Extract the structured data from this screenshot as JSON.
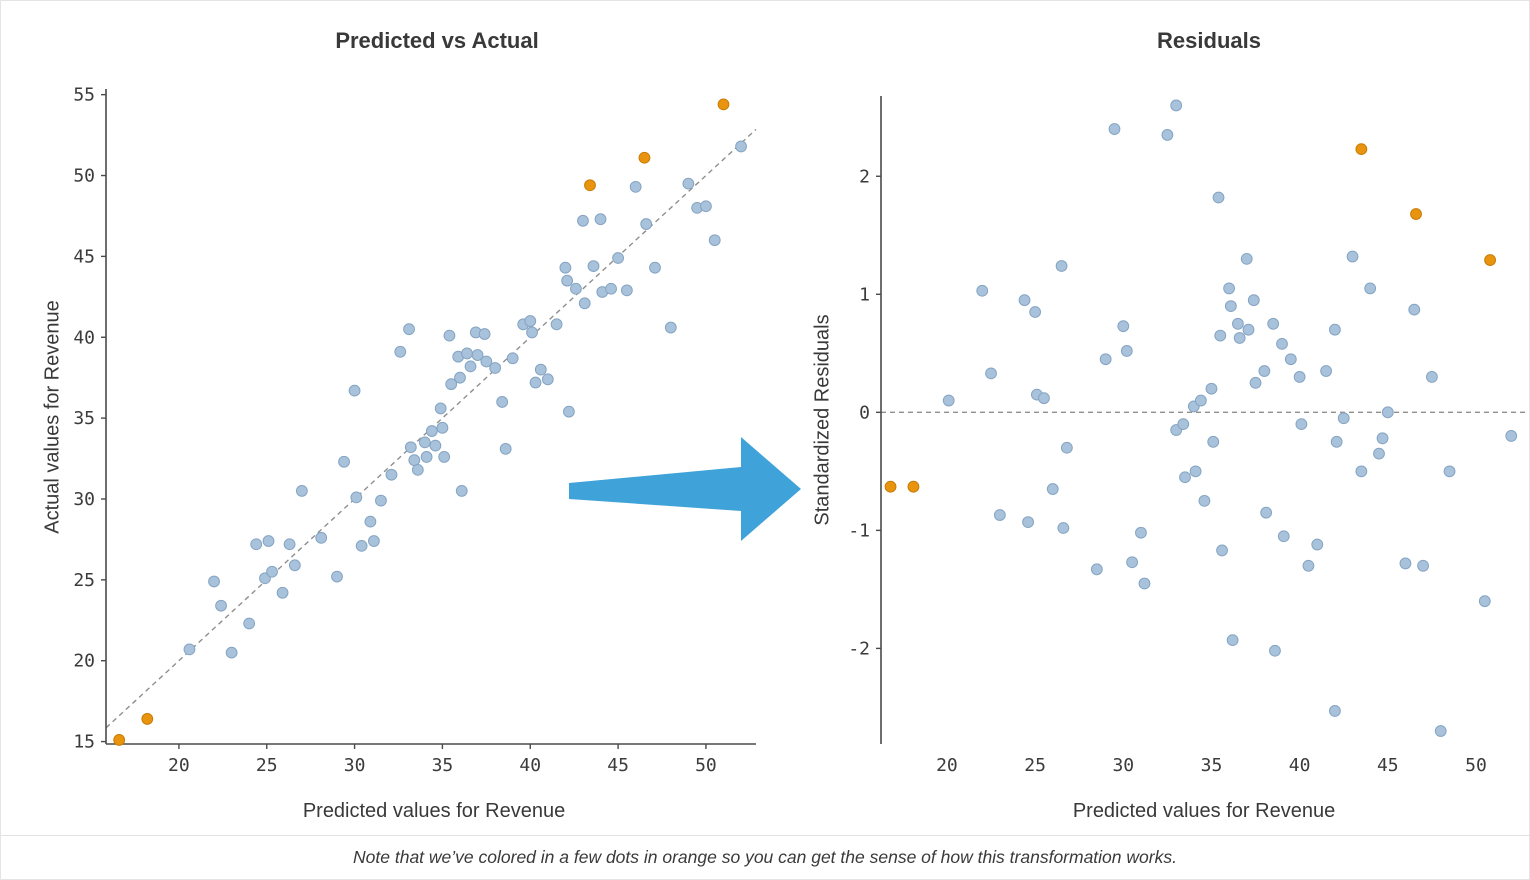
{
  "page": {
    "caption": "Note that we’ve colored in a few dots in orange so you can get the sense of how this transformation works."
  },
  "colors": {
    "blue_fill": "#a9c2dc",
    "blue_stroke": "#84a4c2",
    "orange_fill": "#e8940f",
    "orange_stroke": "#c97c04",
    "axis": "#4a4a4a",
    "text": "#3b3b3b",
    "dashed_line": "#8f8f8f",
    "arrow": "#3fa2d9"
  },
  "chart_data": [
    {
      "type": "scatter",
      "title": "Predicted vs Actual",
      "xlabel": "Predicted values for Revenue",
      "ylabel": "Actual values for Revenue",
      "xlim": [
        15.85,
        52.85
      ],
      "ylim": [
        14.85,
        55.35
      ],
      "xticks": [
        20,
        25,
        30,
        35,
        40,
        45,
        50
      ],
      "yticks": [
        15,
        20,
        25,
        30,
        35,
        40,
        45,
        50,
        55
      ],
      "ref_line": "diagonal",
      "spines": [
        "left",
        "bottom"
      ],
      "grid": false,
      "legend": "none",
      "series": [
        {
          "name": "observations",
          "color": "blue",
          "points": [
            [
              20.6,
              20.7
            ],
            [
              22.0,
              24.9
            ],
            [
              22.4,
              23.4
            ],
            [
              23.0,
              20.5
            ],
            [
              24.0,
              22.3
            ],
            [
              24.4,
              27.2
            ],
            [
              24.9,
              25.1
            ],
            [
              25.1,
              27.4
            ],
            [
              25.3,
              25.5
            ],
            [
              25.9,
              24.2
            ],
            [
              26.3,
              27.2
            ],
            [
              26.6,
              25.9
            ],
            [
              27.0,
              30.5
            ],
            [
              28.1,
              27.6
            ],
            [
              29.0,
              25.2
            ],
            [
              29.4,
              32.3
            ],
            [
              30.0,
              36.7
            ],
            [
              30.1,
              30.1
            ],
            [
              30.4,
              27.1
            ],
            [
              30.9,
              28.6
            ],
            [
              31.1,
              27.4
            ],
            [
              31.5,
              29.9
            ],
            [
              32.1,
              31.5
            ],
            [
              32.6,
              39.1
            ],
            [
              33.1,
              40.5
            ],
            [
              33.2,
              33.2
            ],
            [
              33.4,
              32.4
            ],
            [
              33.6,
              31.8
            ],
            [
              34.0,
              33.5
            ],
            [
              34.1,
              32.6
            ],
            [
              34.4,
              34.2
            ],
            [
              34.6,
              33.3
            ],
            [
              34.9,
              35.6
            ],
            [
              35.0,
              34.4
            ],
            [
              35.1,
              32.6
            ],
            [
              35.4,
              40.1
            ],
            [
              35.5,
              37.1
            ],
            [
              35.9,
              38.8
            ],
            [
              36.0,
              37.5
            ],
            [
              36.1,
              30.5
            ],
            [
              36.4,
              39.0
            ],
            [
              36.6,
              38.2
            ],
            [
              36.9,
              40.3
            ],
            [
              37.0,
              38.9
            ],
            [
              37.4,
              40.2
            ],
            [
              37.5,
              38.5
            ],
            [
              38.0,
              38.1
            ],
            [
              38.4,
              36.0
            ],
            [
              38.6,
              33.1
            ],
            [
              39.0,
              38.7
            ],
            [
              39.6,
              40.8
            ],
            [
              40.0,
              41.0
            ],
            [
              40.1,
              40.3
            ],
            [
              40.3,
              37.2
            ],
            [
              40.6,
              38.0
            ],
            [
              41.0,
              37.4
            ],
            [
              41.5,
              40.8
            ],
            [
              42.0,
              44.3
            ],
            [
              42.1,
              43.5
            ],
            [
              42.2,
              35.4
            ],
            [
              42.6,
              43.0
            ],
            [
              43.0,
              47.2
            ],
            [
              43.1,
              42.1
            ],
            [
              43.6,
              44.4
            ],
            [
              44.0,
              47.3
            ],
            [
              44.1,
              42.8
            ],
            [
              44.6,
              43.0
            ],
            [
              45.0,
              44.9
            ],
            [
              45.5,
              42.9
            ],
            [
              46.0,
              49.3
            ],
            [
              46.6,
              47.0
            ],
            [
              47.1,
              44.3
            ],
            [
              48.0,
              40.6
            ],
            [
              49.0,
              49.5
            ],
            [
              49.5,
              48.0
            ],
            [
              50.0,
              48.1
            ],
            [
              50.5,
              46.0
            ],
            [
              52.0,
              51.8
            ]
          ]
        },
        {
          "name": "highlighted",
          "color": "orange",
          "points": [
            [
              16.6,
              15.1
            ],
            [
              18.2,
              16.4
            ],
            [
              43.4,
              49.4
            ],
            [
              46.5,
              51.1
            ],
            [
              51.0,
              54.4
            ]
          ]
        }
      ]
    },
    {
      "type": "scatter",
      "title": "Residuals",
      "xlabel": "Predicted values for Revenue",
      "ylabel": "Standardized Residuals",
      "xlim": [
        16.26,
        52.95
      ],
      "ylim": [
        -2.81,
        2.68
      ],
      "xticks": [
        20,
        25,
        30,
        35,
        40,
        45,
        50
      ],
      "yticks": [
        -2,
        -1,
        0,
        1,
        2
      ],
      "ref_line": "zero-horizontal",
      "spines": [
        "left"
      ],
      "grid": false,
      "legend": "none",
      "series": [
        {
          "name": "residuals",
          "color": "blue",
          "points": [
            [
              20.1,
              0.1
            ],
            [
              22.0,
              1.03
            ],
            [
              22.5,
              0.33
            ],
            [
              23.0,
              -0.87
            ],
            [
              24.4,
              0.95
            ],
            [
              24.6,
              -0.93
            ],
            [
              25.0,
              0.85
            ],
            [
              25.1,
              0.15
            ],
            [
              25.5,
              0.12
            ],
            [
              26.0,
              -0.65
            ],
            [
              26.5,
              1.24
            ],
            [
              26.6,
              -0.98
            ],
            [
              26.8,
              -0.3
            ],
            [
              28.5,
              -1.33
            ],
            [
              29.0,
              0.45
            ],
            [
              29.5,
              2.4
            ],
            [
              30.0,
              0.73
            ],
            [
              30.2,
              0.52
            ],
            [
              30.5,
              -1.27
            ],
            [
              31.0,
              -1.02
            ],
            [
              31.2,
              -1.45
            ],
            [
              32.5,
              2.35
            ],
            [
              33.0,
              2.6
            ],
            [
              33.0,
              -0.15
            ],
            [
              33.4,
              -0.1
            ],
            [
              33.5,
              -0.55
            ],
            [
              34.0,
              0.05
            ],
            [
              34.1,
              -0.5
            ],
            [
              34.4,
              0.1
            ],
            [
              34.6,
              -0.75
            ],
            [
              35.0,
              0.2
            ],
            [
              35.1,
              -0.25
            ],
            [
              35.4,
              1.82
            ],
            [
              35.5,
              0.65
            ],
            [
              35.6,
              -1.17
            ],
            [
              36.0,
              1.05
            ],
            [
              36.1,
              0.9
            ],
            [
              36.2,
              -1.93
            ],
            [
              36.5,
              0.75
            ],
            [
              36.6,
              0.63
            ],
            [
              37.0,
              1.3
            ],
            [
              37.1,
              0.7
            ],
            [
              37.4,
              0.95
            ],
            [
              37.5,
              0.25
            ],
            [
              38.0,
              0.35
            ],
            [
              38.1,
              -0.85
            ],
            [
              38.5,
              0.75
            ],
            [
              38.6,
              -2.02
            ],
            [
              39.0,
              0.58
            ],
            [
              39.1,
              -1.05
            ],
            [
              39.5,
              0.45
            ],
            [
              40.0,
              0.3
            ],
            [
              40.1,
              -0.1
            ],
            [
              40.5,
              -1.3
            ],
            [
              41.0,
              -1.12
            ],
            [
              41.5,
              0.35
            ],
            [
              42.0,
              0.7
            ],
            [
              42.1,
              -0.25
            ],
            [
              42.0,
              -2.53
            ],
            [
              42.5,
              -0.05
            ],
            [
              43.0,
              1.32
            ],
            [
              43.5,
              -0.5
            ],
            [
              44.0,
              1.05
            ],
            [
              44.5,
              -0.35
            ],
            [
              44.7,
              -0.22
            ],
            [
              45.0,
              0.0
            ],
            [
              46.0,
              -1.28
            ],
            [
              46.5,
              0.87
            ],
            [
              47.0,
              -1.3
            ],
            [
              47.5,
              0.3
            ],
            [
              48.0,
              -2.7
            ],
            [
              48.5,
              -0.5
            ],
            [
              50.5,
              -1.6
            ],
            [
              52.0,
              -0.2
            ]
          ]
        },
        {
          "name": "highlighted",
          "color": "orange",
          "points": [
            [
              16.8,
              -0.63
            ],
            [
              18.1,
              -0.63
            ],
            [
              43.5,
              2.23
            ],
            [
              46.6,
              1.68
            ],
            [
              50.8,
              1.29
            ]
          ]
        }
      ]
    }
  ]
}
